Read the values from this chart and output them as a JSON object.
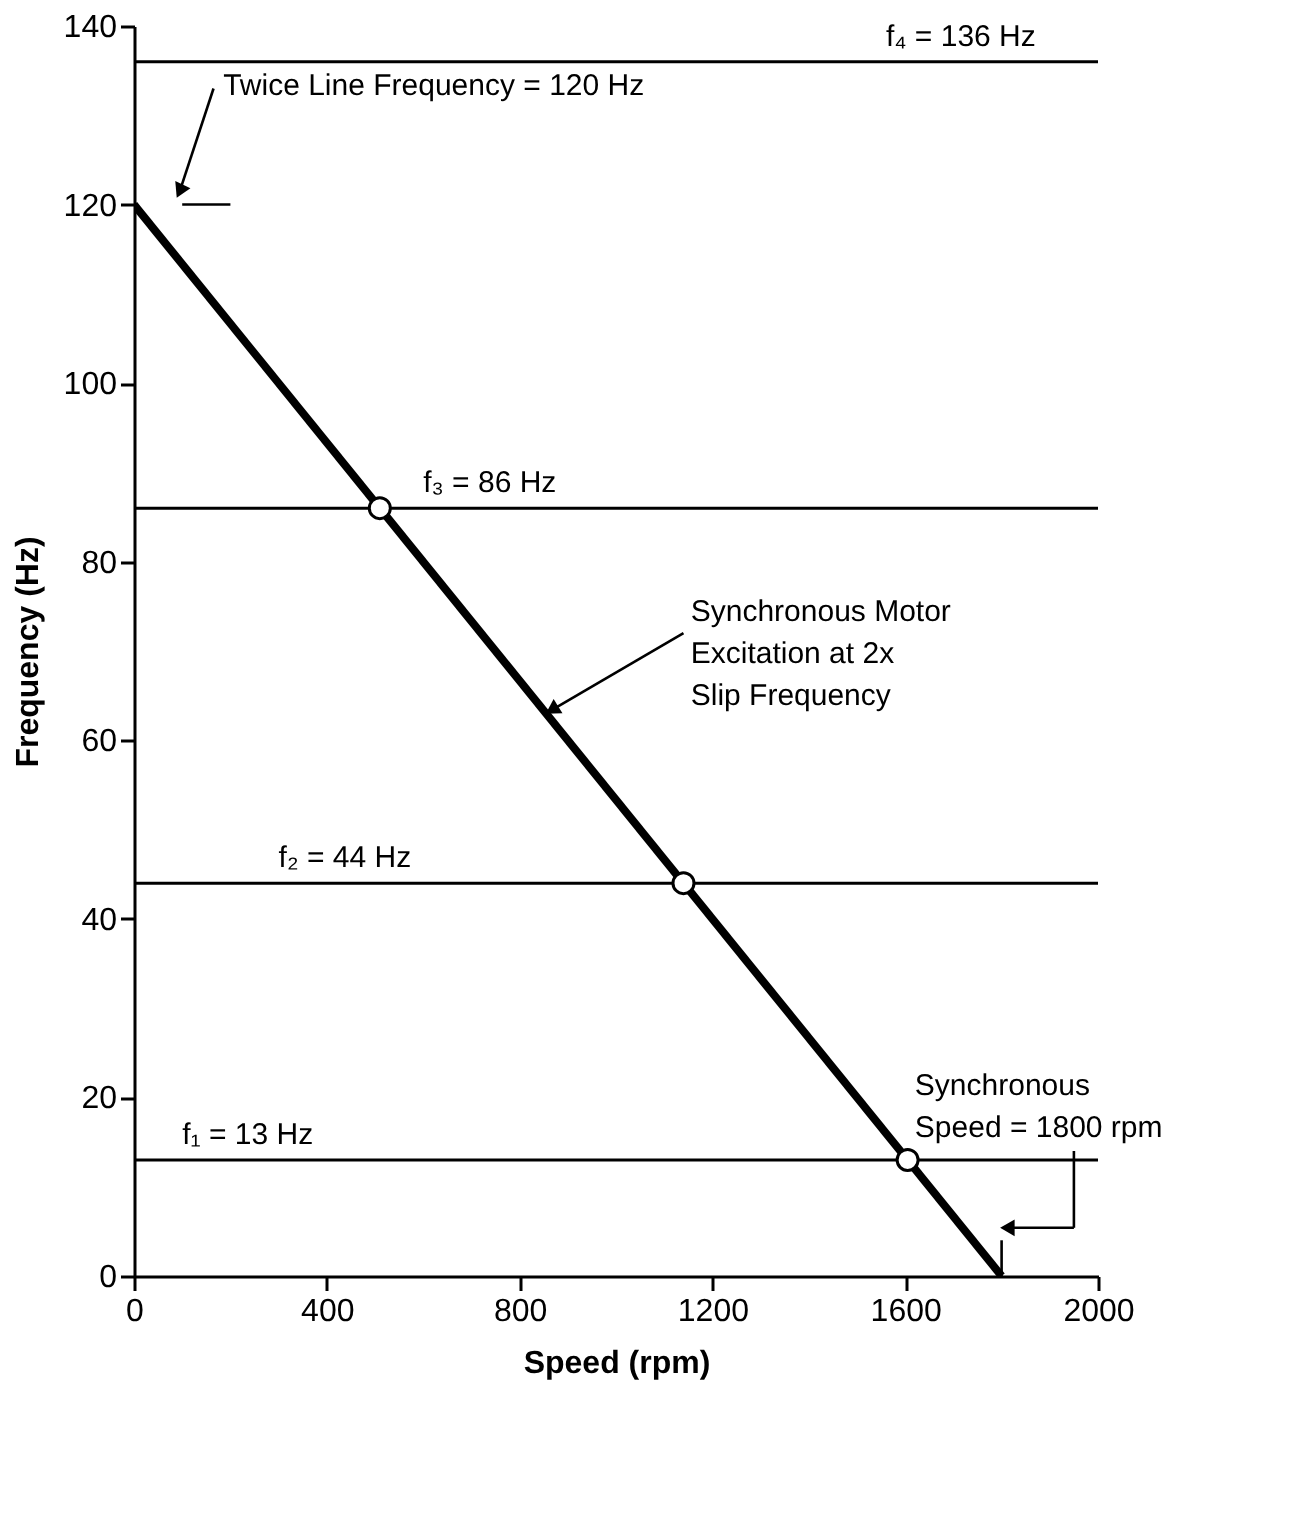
{
  "chart_data": {
    "type": "line",
    "xlabel": "Speed (rpm)",
    "ylabel": "Frequency (Hz)",
    "xlim": [
      0,
      2000
    ],
    "ylim": [
      0,
      140
    ],
    "xticks": [
      0,
      400,
      800,
      1200,
      1600,
      2000
    ],
    "yticks": [
      0,
      20,
      40,
      60,
      80,
      100,
      120,
      140
    ],
    "grid": false,
    "series": [
      {
        "color": "#000000",
        "x": [
          0,
          1800
        ],
        "values": [
          120,
          0
        ]
      },
      {
        "color": "#000000",
        "x": [
          100,
          200
        ],
        "values": [
          120,
          120
        ]
      },
      {
        "color": "#000000",
        "x": [
          1800,
          1800
        ],
        "values": [
          0,
          4
        ]
      },
      {
        "type": "scatter",
        "color": "#ffffff",
        "marker": "circle",
        "x": [
          510,
          1140,
          1605
        ],
        "values": [
          86,
          44,
          13
        ]
      }
    ],
    "ref_lines": [
      {
        "axis": "y",
        "value": 136,
        "label": "f₄ = 136 Hz"
      },
      {
        "axis": "y",
        "value": 86,
        "label": "f₃ = 86 Hz"
      },
      {
        "axis": "y",
        "value": 44,
        "label": "f₂ = 44 Hz"
      },
      {
        "axis": "y",
        "value": 13,
        "label": "f₁ = 13 Hz"
      }
    ],
    "annotations": [
      {
        "text": "Twice Line Frequency = 120 Hz",
        "x": 100,
        "y": 120
      },
      {
        "text": "Synchronous Motor\nExcitation at 2x\nSlip Frequency",
        "x": 855,
        "y": 63
      },
      {
        "text": "Synchronous\nSpeed = 1800 rpm",
        "x": 1800,
        "y": 5
      }
    ]
  }
}
